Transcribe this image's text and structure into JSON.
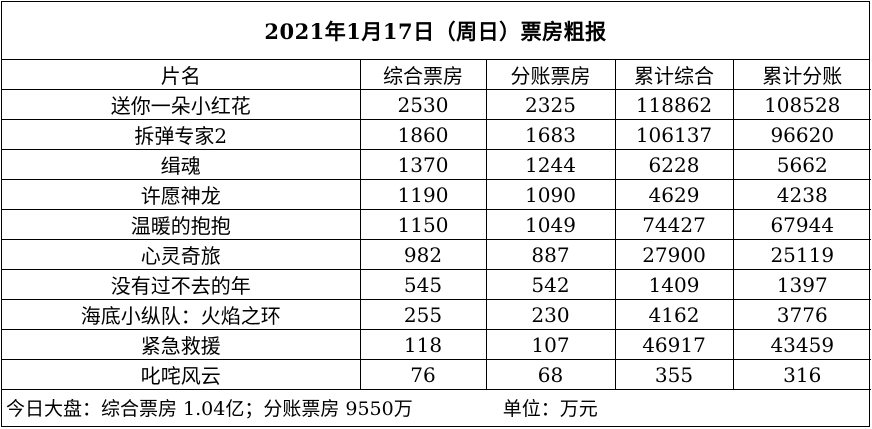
{
  "title": "2021年1月17日（周日）票房粗报",
  "headers": [
    "片名",
    "综合票房",
    "分账票房",
    "累计综合",
    "累计分账"
  ],
  "rows": [
    [
      "送你一朵小红花",
      "2530",
      "2325",
      "118862",
      "108528"
    ],
    [
      "拆弹专家2",
      "1860",
      "1683",
      "106137",
      "96620"
    ],
    [
      "缉魂",
      "1370",
      "1244",
      "6228",
      "5662"
    ],
    [
      "许愿神龙",
      "1190",
      "1090",
      "4629",
      "4238"
    ],
    [
      "温暖的抱抱",
      "1150",
      "1049",
      "74427",
      "67944"
    ],
    [
      "心灵奇旅",
      "982",
      "887",
      "27900",
      "25119"
    ],
    [
      "没有过不去的年",
      "545",
      "542",
      "1409",
      "1397"
    ],
    [
      "海底小纵队：火焰之环",
      "255",
      "230",
      "4162",
      "3776"
    ],
    [
      "紧急救援",
      "118",
      "107",
      "46917",
      "43459"
    ],
    [
      "叱咤风云",
      "76",
      "68",
      "355",
      "316"
    ]
  ],
  "footer": {
    "summary": "今日大盘：综合票房 1.04亿；分账票房 9550万",
    "unit": "单位：万元"
  }
}
